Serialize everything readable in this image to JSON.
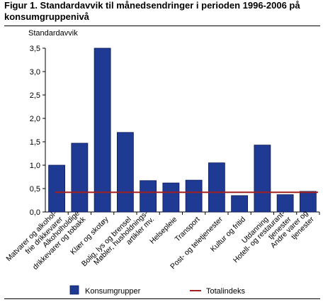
{
  "figure": {
    "title": "Figur 1. Standardavvik til månedsendringer i perioden 1996-2006 på konsumgruppenivå"
  },
  "chart_data": {
    "type": "bar",
    "title": "Figur 1. Standardavvik til månedsendringer i perioden 1996-2006 på konsumgruppenivå",
    "ylabel": "Standardavvik",
    "xlabel": "",
    "ylim": [
      0,
      3.5
    ],
    "yticks": [
      "0,0",
      "0,5",
      "1,0",
      "1,5",
      "2,0",
      "2,5",
      "3,0",
      "3,5"
    ],
    "grid": false,
    "legend_position": "bottom",
    "categories": [
      [
        "Matvarer og alkohol-",
        "frie drikkevarer"
      ],
      [
        "Alkoholholdige",
        "drikkevarer og tobakk"
      ],
      [
        "Klær og skotøy"
      ],
      [
        "Bolig, lys og brensel"
      ],
      [
        "Møbler, husholdnings-",
        "artikler mv."
      ],
      [
        "Helsepleie"
      ],
      [
        "Transport"
      ],
      [
        "Post- og teletjenester"
      ],
      [
        "Kultur og fritid"
      ],
      [
        "Utdanning"
      ],
      [
        "Hotell- og restaurant-",
        "tjenester"
      ],
      [
        "Andre varer og",
        "tjenester"
      ]
    ],
    "series": [
      {
        "name": "Konsumgrupper",
        "type": "bar",
        "color": "#1f3a93",
        "values": [
          1.0,
          1.47,
          3.5,
          1.7,
          0.67,
          0.62,
          0.68,
          1.05,
          0.35,
          1.43,
          0.37,
          0.44
        ]
      },
      {
        "name": "Totalindeks",
        "type": "line",
        "color": "#a32020",
        "value": 0.42
      }
    ]
  }
}
